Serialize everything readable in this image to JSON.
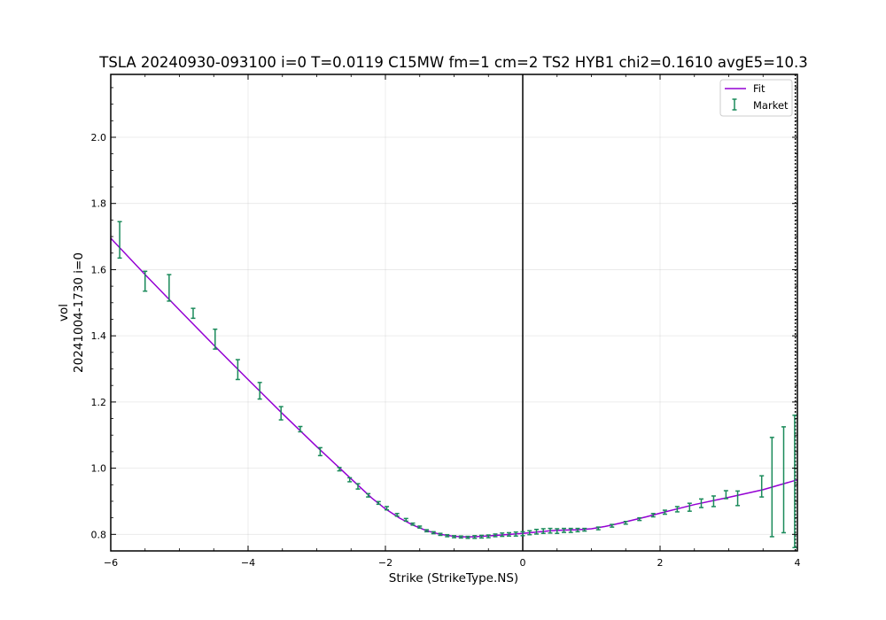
{
  "chart_data": {
    "type": "line",
    "title": "TSLA 20240930-093100 i=0 T=0.0119 C15MW fm=1 cm=2 TS2 HYB1 chi2=0.1610 avgE5=10.3",
    "xlabel": "Strike (StrikeType.NS)",
    "ylabel": "vol",
    "ylabel2": "20241004-1730 i=0",
    "xlim": [
      -6,
      4
    ],
    "ylim": [
      0.75,
      2.19
    ],
    "xticks": [
      -6,
      -4,
      -2,
      0,
      2,
      4
    ],
    "xtick_labels": [
      "−6",
      "−4",
      "−2",
      "0",
      "2",
      "4"
    ],
    "yticks": [
      0.8,
      1.0,
      1.2,
      1.4,
      1.6,
      1.8,
      2.0
    ],
    "ytick_labels": [
      "0.8",
      "1.0",
      "1.2",
      "1.4",
      "1.6",
      "1.8",
      "2.0"
    ],
    "grid": true,
    "legend_position": "top-right",
    "vertical_lines": [
      {
        "x": 0,
        "style": "solid",
        "color": "#000000"
      },
      {
        "x": 3.97,
        "style": "dotted",
        "color": "#000000"
      }
    ],
    "series": [
      {
        "name": "Fit",
        "kind": "line",
        "color": "#9400d3",
        "x": [
          -6.0,
          -5.5,
          -5.0,
          -4.5,
          -4.0,
          -3.5,
          -3.0,
          -2.5,
          -2.2,
          -2.0,
          -1.8,
          -1.6,
          -1.4,
          -1.2,
          -1.0,
          -0.8,
          -0.6,
          -0.4,
          -0.2,
          0.0,
          0.2,
          0.4,
          0.6,
          0.8,
          1.0,
          1.2,
          1.4,
          1.6,
          1.8,
          2.0,
          2.5,
          3.0,
          3.5,
          4.0
        ],
        "y": [
          1.695,
          1.585,
          1.478,
          1.372,
          1.268,
          1.165,
          1.065,
          0.968,
          0.91,
          0.877,
          0.85,
          0.828,
          0.811,
          0.8,
          0.794,
          0.792,
          0.794,
          0.797,
          0.8,
          0.803,
          0.807,
          0.811,
          0.813,
          0.814,
          0.817,
          0.824,
          0.833,
          0.843,
          0.853,
          0.864,
          0.89,
          0.912,
          0.935,
          0.965
        ]
      },
      {
        "name": "Market",
        "kind": "errorbar",
        "color": "#1a8a5a",
        "points": [
          {
            "x": -5.87,
            "y": 1.69,
            "err": 0.055
          },
          {
            "x": -5.5,
            "y": 1.565,
            "err": 0.03
          },
          {
            "x": -5.15,
            "y": 1.545,
            "err": 0.04
          },
          {
            "x": -4.8,
            "y": 1.468,
            "err": 0.015
          },
          {
            "x": -4.48,
            "y": 1.39,
            "err": 0.03
          },
          {
            "x": -4.15,
            "y": 1.298,
            "err": 0.03
          },
          {
            "x": -3.83,
            "y": 1.234,
            "err": 0.025
          },
          {
            "x": -3.52,
            "y": 1.166,
            "err": 0.02
          },
          {
            "x": -3.24,
            "y": 1.118,
            "err": 0.008
          },
          {
            "x": -2.95,
            "y": 1.05,
            "err": 0.012
          },
          {
            "x": -2.67,
            "y": 0.997,
            "err": 0.005
          },
          {
            "x": -2.52,
            "y": 0.965,
            "err": 0.006
          },
          {
            "x": -2.4,
            "y": 0.945,
            "err": 0.008
          },
          {
            "x": -2.25,
            "y": 0.918,
            "err": 0.005
          },
          {
            "x": -2.1,
            "y": 0.895,
            "err": 0.004
          },
          {
            "x": -1.98,
            "y": 0.879,
            "err": 0.005
          },
          {
            "x": -1.83,
            "y": 0.859,
            "err": 0.004
          },
          {
            "x": -1.7,
            "y": 0.844,
            "err": 0.004
          },
          {
            "x": -1.6,
            "y": 0.831,
            "err": 0.003
          },
          {
            "x": -1.5,
            "y": 0.822,
            "err": 0.003
          },
          {
            "x": -1.4,
            "y": 0.811,
            "err": 0.003
          },
          {
            "x": -1.3,
            "y": 0.805,
            "err": 0.003
          },
          {
            "x": -1.2,
            "y": 0.8,
            "err": 0.003
          },
          {
            "x": -1.1,
            "y": 0.796,
            "err": 0.003
          },
          {
            "x": -1.0,
            "y": 0.793,
            "err": 0.003
          },
          {
            "x": -0.9,
            "y": 0.792,
            "err": 0.003
          },
          {
            "x": -0.8,
            "y": 0.791,
            "err": 0.003
          },
          {
            "x": -0.7,
            "y": 0.792,
            "err": 0.004
          },
          {
            "x": -0.6,
            "y": 0.793,
            "err": 0.004
          },
          {
            "x": -0.5,
            "y": 0.794,
            "err": 0.004
          },
          {
            "x": -0.4,
            "y": 0.797,
            "err": 0.004
          },
          {
            "x": -0.3,
            "y": 0.799,
            "err": 0.005
          },
          {
            "x": -0.2,
            "y": 0.8,
            "err": 0.005
          },
          {
            "x": -0.1,
            "y": 0.801,
            "err": 0.006
          },
          {
            "x": 0.0,
            "y": 0.802,
            "err": 0.006
          },
          {
            "x": 0.1,
            "y": 0.805,
            "err": 0.006
          },
          {
            "x": 0.2,
            "y": 0.808,
            "err": 0.007
          },
          {
            "x": 0.3,
            "y": 0.81,
            "err": 0.007
          },
          {
            "x": 0.4,
            "y": 0.811,
            "err": 0.007
          },
          {
            "x": 0.5,
            "y": 0.81,
            "err": 0.007
          },
          {
            "x": 0.6,
            "y": 0.812,
            "err": 0.006
          },
          {
            "x": 0.7,
            "y": 0.812,
            "err": 0.006
          },
          {
            "x": 0.8,
            "y": 0.813,
            "err": 0.005
          },
          {
            "x": 0.9,
            "y": 0.814,
            "err": 0.004
          },
          {
            "x": 1.1,
            "y": 0.818,
            "err": 0.004
          },
          {
            "x": 1.3,
            "y": 0.826,
            "err": 0.004
          },
          {
            "x": 1.5,
            "y": 0.835,
            "err": 0.004
          },
          {
            "x": 1.7,
            "y": 0.846,
            "err": 0.004
          },
          {
            "x": 1.9,
            "y": 0.858,
            "err": 0.005
          },
          {
            "x": 2.07,
            "y": 0.867,
            "err": 0.006
          },
          {
            "x": 2.25,
            "y": 0.876,
            "err": 0.008
          },
          {
            "x": 2.43,
            "y": 0.882,
            "err": 0.012
          },
          {
            "x": 2.6,
            "y": 0.894,
            "err": 0.013
          },
          {
            "x": 2.78,
            "y": 0.9,
            "err": 0.016
          },
          {
            "x": 2.96,
            "y": 0.92,
            "err": 0.012
          },
          {
            "x": 3.13,
            "y": 0.909,
            "err": 0.022
          },
          {
            "x": 3.48,
            "y": 0.945,
            "err": 0.032
          },
          {
            "x": 3.63,
            "y": 0.943,
            "err": 0.15
          },
          {
            "x": 3.8,
            "y": 0.965,
            "err": 0.16
          },
          {
            "x": 3.96,
            "y": 0.96,
            "err": 0.2
          }
        ]
      }
    ]
  }
}
